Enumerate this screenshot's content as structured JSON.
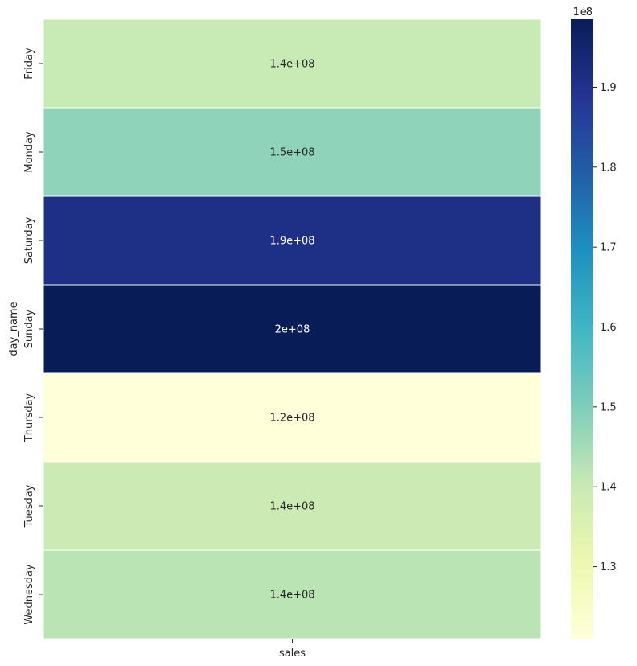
{
  "chart_data": {
    "type": "heatmap",
    "ylabel": "day_name",
    "xlabel": "sales",
    "x_categories": [
      "sales"
    ],
    "y_categories": [
      "Friday",
      "Monday",
      "Saturday",
      "Sunday",
      "Thursday",
      "Tuesday",
      "Wednesday"
    ],
    "values": [
      140000000.0,
      148000000.0,
      191000000.0,
      198500000.0,
      121000000.0,
      139000000.0,
      142000000.0
    ],
    "annotations": [
      "1.4e+08",
      "1.5e+08",
      "1.9e+08",
      "2e+08",
      "1.2e+08",
      "1.4e+08",
      "1.4e+08"
    ],
    "colorbar": {
      "range": [
        121000000.0,
        198500000.0
      ],
      "ticks": [
        1.3,
        1.4,
        1.5,
        1.6,
        1.7,
        1.8,
        1.9
      ],
      "tick_labels": [
        "1.3",
        "1.4",
        "1.5",
        "1.6",
        "1.7",
        "1.8",
        "1.9"
      ],
      "offset_label": "1e8",
      "tick_scale": 100000000.0
    },
    "colormap": "YlGnBu",
    "colormap_stops": [
      "#ffffd9",
      "#edf8b1",
      "#c7e9b4",
      "#7fcdbb",
      "#41b6c4",
      "#1d91c0",
      "#225ea8",
      "#253494",
      "#081d58"
    ]
  }
}
